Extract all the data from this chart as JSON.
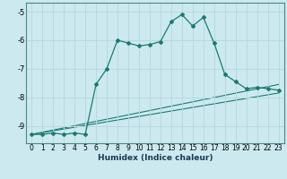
{
  "title": "",
  "xlabel": "Humidex (Indice chaleur)",
  "bg_color": "#cce9f0",
  "grid_color": "#b8d8e0",
  "line_color": "#1a7a6e",
  "xlim": [
    -0.5,
    23.5
  ],
  "ylim": [
    -9.6,
    -4.7
  ],
  "yticks": [
    -9,
    -8,
    -7,
    -6,
    -5
  ],
  "xticks": [
    0,
    1,
    2,
    3,
    4,
    5,
    6,
    7,
    8,
    9,
    10,
    11,
    12,
    13,
    14,
    15,
    16,
    17,
    18,
    19,
    20,
    21,
    22,
    23
  ],
  "main_x": [
    0,
    1,
    2,
    3,
    4,
    5,
    6,
    7,
    8,
    9,
    10,
    11,
    12,
    13,
    14,
    15,
    16,
    17,
    18,
    19,
    20,
    21,
    22,
    23
  ],
  "main_y": [
    -9.3,
    -9.3,
    -9.25,
    -9.3,
    -9.25,
    -9.3,
    -7.55,
    -7.0,
    -6.0,
    -6.1,
    -6.2,
    -6.15,
    -6.05,
    -5.35,
    -5.1,
    -5.5,
    -5.2,
    -6.1,
    -7.2,
    -7.45,
    -7.7,
    -7.65,
    -7.7,
    -7.75
  ],
  "line2_x": [
    0,
    5,
    23
  ],
  "line2_y": [
    -9.3,
    -9.3,
    -7.55
  ],
  "line3_x": [
    0,
    5,
    23
  ],
  "line3_y": [
    -9.3,
    -9.3,
    -7.85
  ],
  "xlabel_fontsize": 6.5,
  "tick_fontsize": 5.5
}
